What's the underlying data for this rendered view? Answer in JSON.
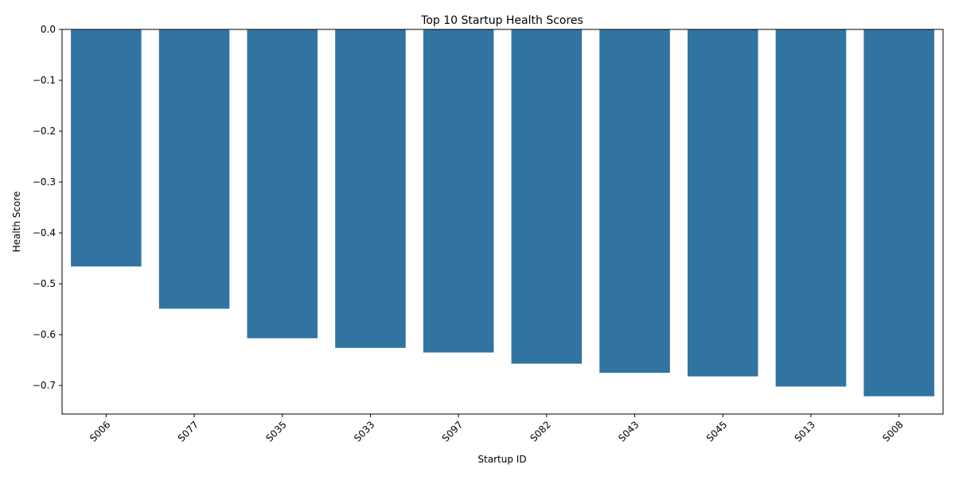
{
  "chart_data": {
    "type": "bar",
    "title": "Top 10 Startup Health Scores",
    "xlabel": "Startup ID",
    "ylabel": "Health Score",
    "categories": [
      "S006",
      "S077",
      "S035",
      "S033",
      "S097",
      "S082",
      "S043",
      "S045",
      "S013",
      "S008"
    ],
    "values": [
      -0.466,
      -0.549,
      -0.607,
      -0.626,
      -0.635,
      -0.657,
      -0.675,
      -0.682,
      -0.702,
      -0.721
    ],
    "ylim": [
      -0.756,
      0.0
    ],
    "yticks": [
      0.0,
      -0.1,
      -0.2,
      -0.3,
      -0.4,
      -0.5,
      -0.6,
      -0.7
    ],
    "ytick_labels": [
      "0.0",
      "−0.1",
      "−0.2",
      "−0.3",
      "−0.4",
      "−0.5",
      "−0.6",
      "−0.7"
    ],
    "xtick_rotation_deg": 45,
    "bar_color": "#3274a1",
    "grid": false,
    "legend": "none"
  }
}
